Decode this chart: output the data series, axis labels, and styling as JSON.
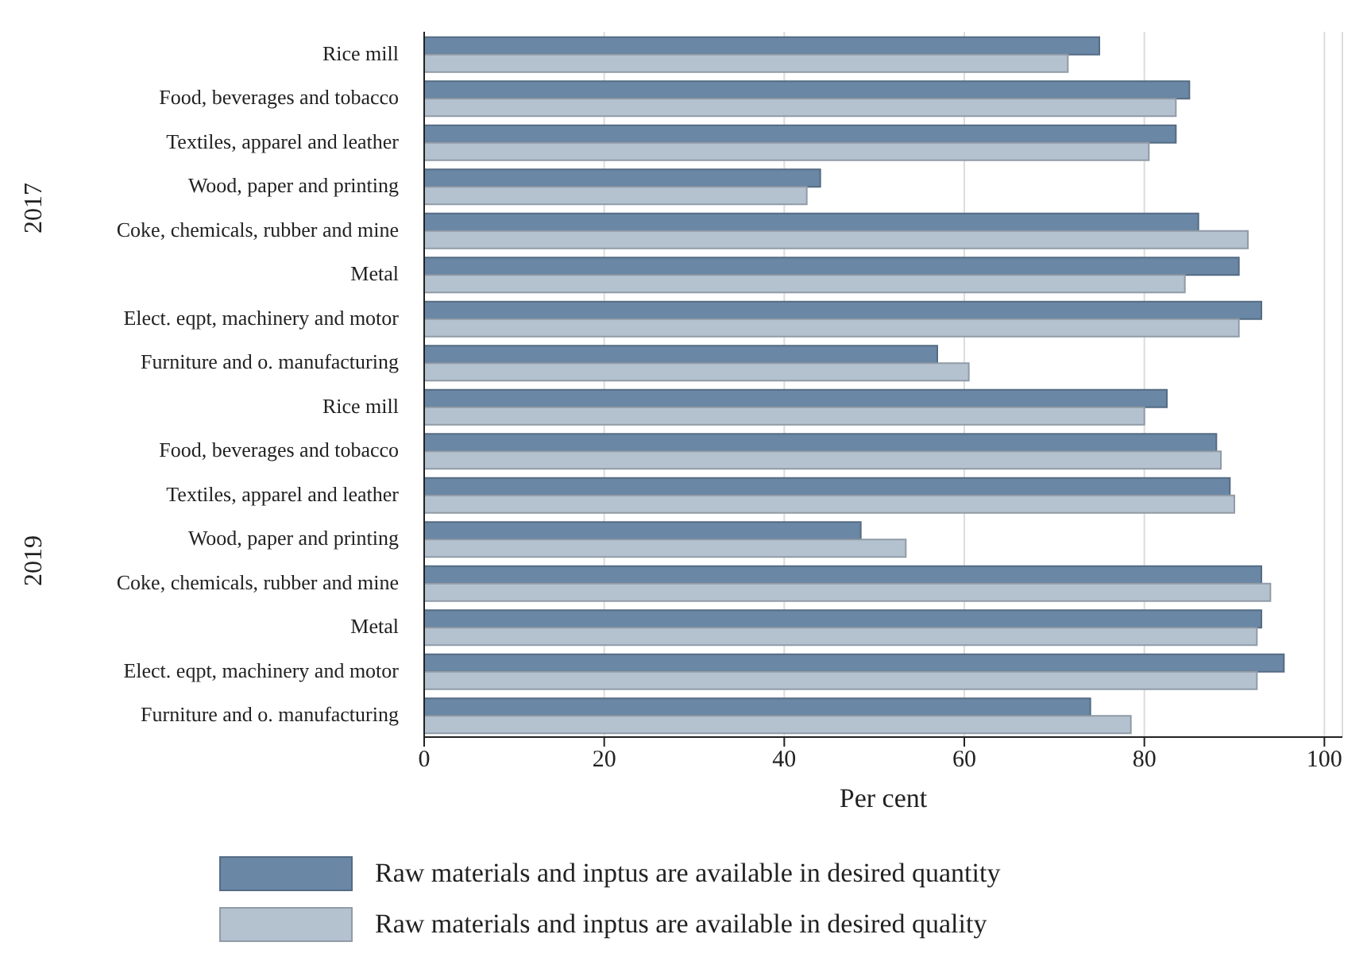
{
  "chart_data": {
    "type": "bar",
    "orientation": "horizontal",
    "xlabel": "Per cent",
    "categories": [
      "Rice mill",
      "Food, beverages and tobacco",
      "Textiles, apparel and leather",
      "Wood, paper and printing",
      "Coke, chemicals, rubber and mine",
      "Metal",
      "Elect. eqpt, machinery and motor",
      "Furniture and o. manufacturing",
      "Rice mill",
      "Food, beverages and tobacco",
      "Textiles, apparel and leather",
      "Wood, paper and printing",
      "Coke, chemicals, rubber and mine",
      "Metal",
      "Elect. eqpt, machinery and motor",
      "Furniture and o. manufacturing"
    ],
    "series": [
      {
        "name": "Raw materials and inptus are available in desired quantity",
        "color": "#6a87a5",
        "values": [
          75,
          85,
          83.5,
          44,
          86,
          90.5,
          93,
          57,
          82.5,
          88,
          89.5,
          48.5,
          93,
          93,
          95.5,
          74
        ]
      },
      {
        "name": "Raw materials and inptus are available in desired quality",
        "color": "#b4c2d0",
        "values": [
          71.5,
          83.5,
          80.5,
          42.5,
          91.5,
          84.5,
          90.5,
          60.5,
          80,
          88.5,
          90,
          53.5,
          94,
          92.5,
          92.5,
          78.5
        ]
      }
    ],
    "xlim": [
      0,
      102
    ],
    "xticks": [
      0,
      20,
      40,
      60,
      80,
      100
    ],
    "grid": "x",
    "legend": "bottom",
    "annotations": [
      "2017",
      "2019"
    ]
  }
}
